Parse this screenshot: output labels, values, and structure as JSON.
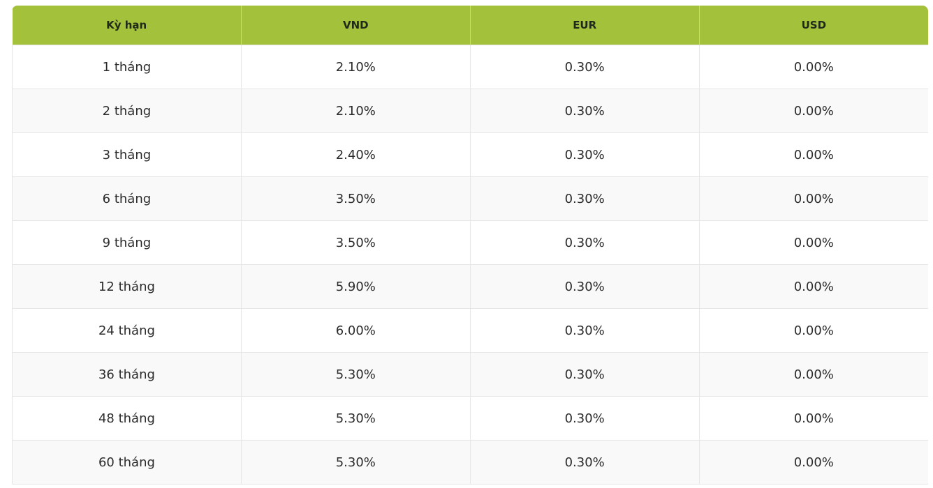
{
  "table": {
    "header": [
      "Kỳ hạn",
      "VND",
      "EUR",
      "USD"
    ],
    "rows": [
      [
        "1 tháng",
        "2.10%",
        "0.30%",
        "0.00%"
      ],
      [
        "2 tháng",
        "2.10%",
        "0.30%",
        "0.00%"
      ],
      [
        "3 tháng",
        "2.40%",
        "0.30%",
        "0.00%"
      ],
      [
        "6 tháng",
        "3.50%",
        "0.30%",
        "0.00%"
      ],
      [
        "9 tháng",
        "3.50%",
        "0.30%",
        "0.00%"
      ],
      [
        "12 tháng",
        "5.90%",
        "0.30%",
        "0.00%"
      ],
      [
        "24 tháng",
        "6.00%",
        "0.30%",
        "0.00%"
      ],
      [
        "36 tháng",
        "5.30%",
        "0.30%",
        "0.00%"
      ],
      [
        "48 tháng",
        "5.30%",
        "0.30%",
        "0.00%"
      ],
      [
        "60 tháng",
        "5.30%",
        "0.30%",
        "0.00%"
      ]
    ]
  }
}
